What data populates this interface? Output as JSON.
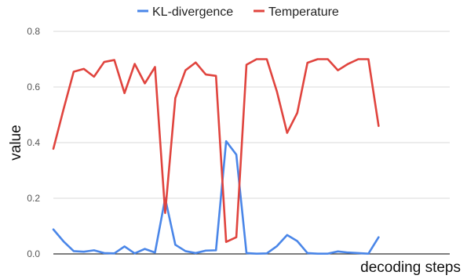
{
  "chart_data": {
    "type": "line",
    "title": "",
    "xlabel": "decoding steps",
    "ylabel": "value",
    "ylim": [
      0,
      0.8
    ],
    "yticks": [
      "0.0",
      "0.2",
      "0.4",
      "0.6",
      "0.8"
    ],
    "grid": true,
    "legend_position": "top",
    "x": [
      1,
      2,
      3,
      4,
      5,
      6,
      7,
      8,
      9,
      10,
      11,
      12,
      13,
      14,
      15,
      16,
      17,
      18,
      19,
      20,
      21,
      22,
      23,
      24,
      25,
      26,
      27,
      28,
      29,
      30,
      31,
      32,
      33,
      34,
      35,
      36,
      37,
      38,
      39,
      40
    ],
    "series": [
      {
        "name": "KL-divergence",
        "color": "#4a86e8",
        "values": [
          0.088,
          0.045,
          0.01,
          0.008,
          0.013,
          0.003,
          0.002,
          0.027,
          0.002,
          0.018,
          0.005,
          0.2,
          0.033,
          0.01,
          0.003,
          0.012,
          0.013,
          0.405,
          0.357,
          0.003,
          0.001,
          0.002,
          0.028,
          0.068,
          0.046,
          0.003,
          0.001,
          0.001,
          0.009,
          0.005,
          0.003,
          0.001,
          0.06,
          null,
          null,
          null,
          null,
          null,
          null,
          null
        ]
      },
      {
        "name": "Temperature",
        "color": "#e0443e",
        "values": [
          0.378,
          0.52,
          0.655,
          0.665,
          0.637,
          0.69,
          0.697,
          0.578,
          0.683,
          0.613,
          0.672,
          0.147,
          0.56,
          0.66,
          0.688,
          0.645,
          0.64,
          0.043,
          0.06,
          0.68,
          0.7,
          0.7,
          0.583,
          0.435,
          0.507,
          0.687,
          0.7,
          0.7,
          0.66,
          0.683,
          0.7,
          0.7,
          0.46,
          null,
          null,
          null,
          null,
          null,
          null,
          null
        ]
      }
    ]
  }
}
